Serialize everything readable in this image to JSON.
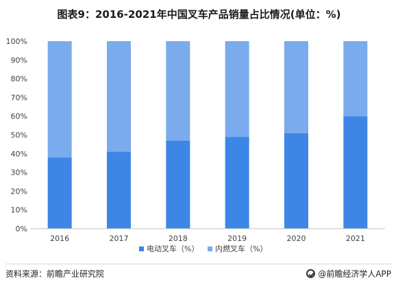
{
  "chart_data": {
    "type": "bar",
    "stacked": true,
    "title": "图表9：2016-2021年中国叉车产品销量占比情况(单位：%)",
    "categories": [
      "2016",
      "2017",
      "2018",
      "2019",
      "2020",
      "2021"
    ],
    "series": [
      {
        "name": "电动叉车（%）",
        "values": [
          38,
          41,
          47,
          49,
          51,
          60
        ],
        "color": "#3d86e6"
      },
      {
        "name": "内燃叉车（%）",
        "values": [
          62,
          59,
          53,
          51,
          49,
          40
        ],
        "color": "#7aabec"
      }
    ],
    "y_ticks": [
      "0%",
      "10%",
      "20%",
      "30%",
      "40%",
      "50%",
      "60%",
      "70%",
      "80%",
      "90%",
      "100%"
    ],
    "ylim": [
      0,
      100
    ],
    "grid": false,
    "legend_position": "bottom"
  },
  "footer": {
    "source": "资料来源：前瞻产业研究院",
    "brand": "@前瞻经济学人APP"
  }
}
